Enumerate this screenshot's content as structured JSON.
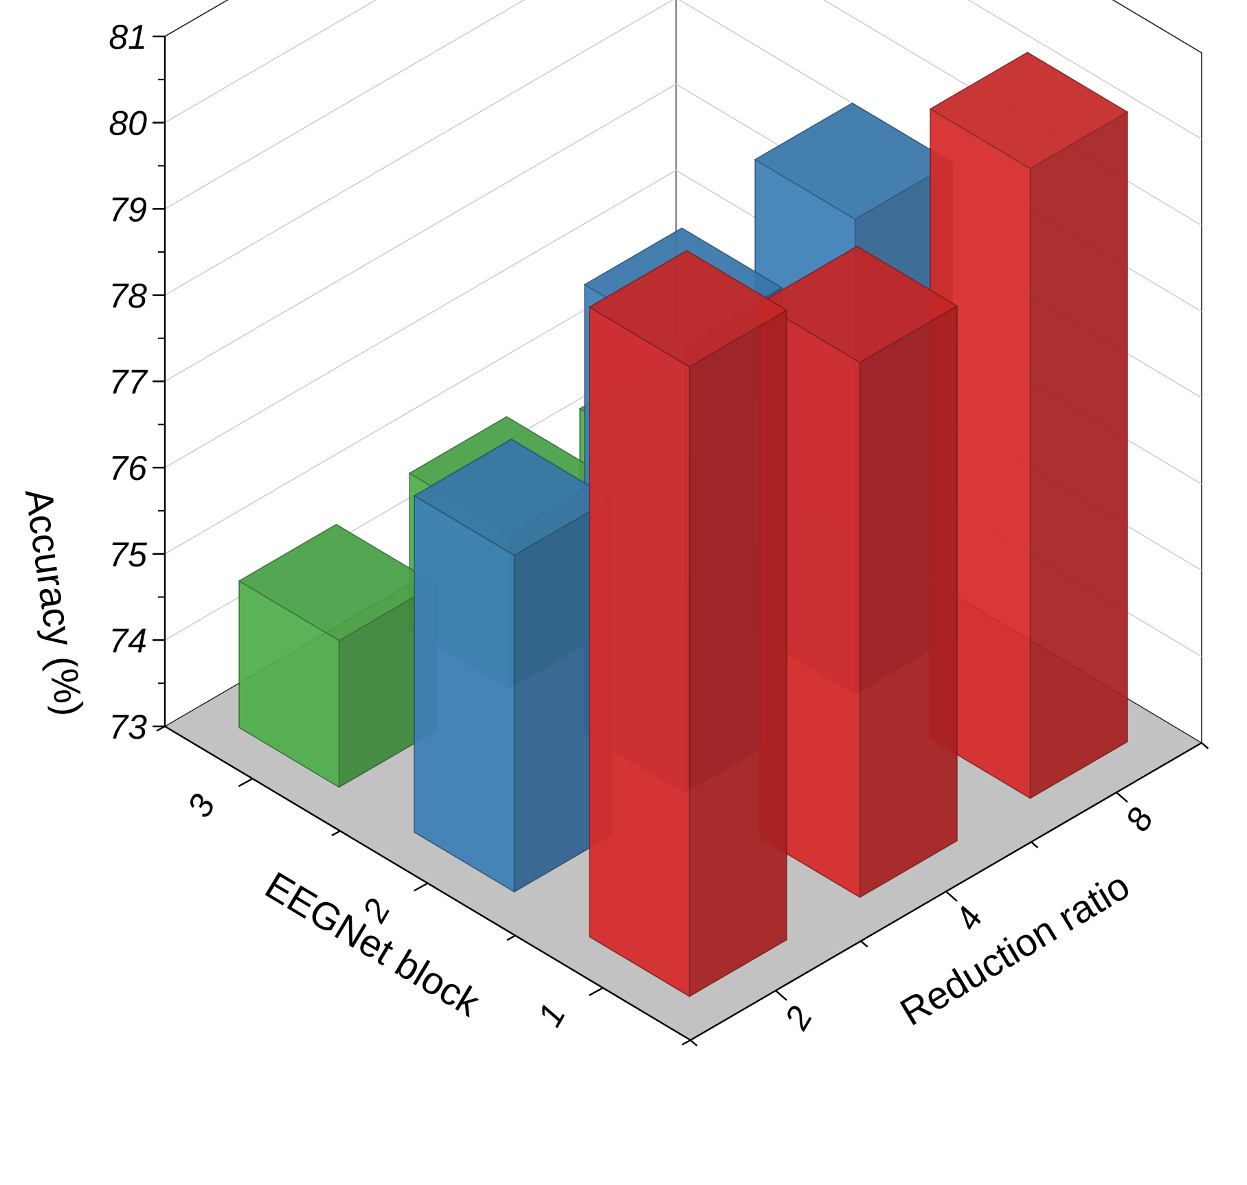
{
  "chart_data": {
    "type": "bar3d",
    "zlabel": "Accuracy (%)",
    "xlabel": "Reduction ratio",
    "ylabel": "EEGNet block",
    "zlim": [
      73,
      81
    ],
    "z_ticks": [
      "73",
      "74",
      "75",
      "76",
      "77",
      "78",
      "79",
      "80",
      "81"
    ],
    "x_categories": [
      "2",
      "4",
      "8"
    ],
    "y_categories": [
      "1",
      "2",
      "3"
    ],
    "grid": true,
    "colors": {
      "red": "#d62a2a",
      "blue": "#3d80b8",
      "green": "#4fae4b",
      "floor": "#c2c2c2"
    },
    "bars": [
      {
        "x": "2",
        "y": "3",
        "value": 80.3,
        "color": "red"
      },
      {
        "x": "4",
        "y": "3",
        "value": 79.2,
        "color": "red"
      },
      {
        "x": "8",
        "y": "3",
        "value": 80.3,
        "color": "red"
      },
      {
        "x": "2",
        "y": "2",
        "value": 76.9,
        "color": "blue"
      },
      {
        "x": "4",
        "y": "2",
        "value": 78.2,
        "color": "blue"
      },
      {
        "x": "8",
        "y": "2",
        "value": 78.5,
        "color": "blue"
      },
      {
        "x": "2",
        "y": "1",
        "value": 74.7,
        "color": "green"
      },
      {
        "x": "4",
        "y": "1",
        "value": 74.8,
        "color": "green"
      },
      {
        "x": "8",
        "y": "1",
        "value": 74.4,
        "color": "green"
      }
    ]
  }
}
